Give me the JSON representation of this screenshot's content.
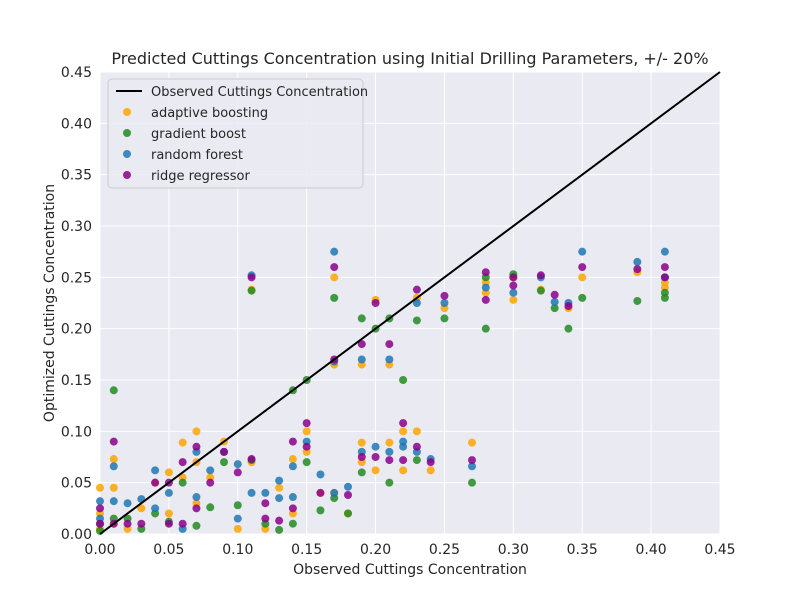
{
  "chart_data": {
    "type": "scatter",
    "title": "Predicted Cuttings Concentration using Initial Drilling Parameters, +/- 20%",
    "xlabel": "Observed Cuttings Concentration",
    "ylabel": "Optimized Cuttings Concentration",
    "xlim": [
      0,
      0.45
    ],
    "ylim": [
      0,
      0.45
    ],
    "grid": true,
    "legend_position": "top-left",
    "x_ticks": [
      "0.00",
      "0.05",
      "0.10",
      "0.15",
      "0.20",
      "0.25",
      "0.30",
      "0.35",
      "0.40",
      "0.45"
    ],
    "y_ticks": [
      "0.00",
      "0.05",
      "0.10",
      "0.15",
      "0.20",
      "0.25",
      "0.30",
      "0.35",
      "0.40",
      "0.45"
    ],
    "reference_line": {
      "name": "Observed Cuttings Concentration",
      "color": "#000000",
      "points": [
        [
          0,
          0
        ],
        [
          0.45,
          0.45
        ]
      ]
    },
    "series": [
      {
        "name": "adaptive boosting",
        "color": "#ffa500",
        "points": [
          [
            0.0,
            0.045
          ],
          [
            0.0,
            0.02
          ],
          [
            0.0,
            0.005
          ],
          [
            0.01,
            0.073
          ],
          [
            0.01,
            0.045
          ],
          [
            0.01,
            0.01
          ],
          [
            0.02,
            0.005
          ],
          [
            0.03,
            0.025
          ],
          [
            0.04,
            0.05
          ],
          [
            0.05,
            0.06
          ],
          [
            0.05,
            0.02
          ],
          [
            0.06,
            0.089
          ],
          [
            0.06,
            0.055
          ],
          [
            0.07,
            0.1
          ],
          [
            0.07,
            0.07
          ],
          [
            0.07,
            0.03
          ],
          [
            0.08,
            0.055
          ],
          [
            0.09,
            0.09
          ],
          [
            0.1,
            0.005
          ],
          [
            0.11,
            0.238
          ],
          [
            0.11,
            0.07
          ],
          [
            0.12,
            0.005
          ],
          [
            0.13,
            0.045
          ],
          [
            0.14,
            0.073
          ],
          [
            0.14,
            0.02
          ],
          [
            0.15,
            0.1
          ],
          [
            0.15,
            0.08
          ],
          [
            0.16,
            0.04
          ],
          [
            0.17,
            0.25
          ],
          [
            0.17,
            0.165
          ],
          [
            0.17,
            0.04
          ],
          [
            0.18,
            0.02
          ],
          [
            0.19,
            0.165
          ],
          [
            0.19,
            0.089
          ],
          [
            0.19,
            0.07
          ],
          [
            0.2,
            0.228
          ],
          [
            0.2,
            0.062
          ],
          [
            0.21,
            0.165
          ],
          [
            0.21,
            0.089
          ],
          [
            0.22,
            0.1
          ],
          [
            0.22,
            0.062
          ],
          [
            0.23,
            0.23
          ],
          [
            0.23,
            0.1
          ],
          [
            0.24,
            0.062
          ],
          [
            0.25,
            0.22
          ],
          [
            0.27,
            0.089
          ],
          [
            0.28,
            0.245
          ],
          [
            0.28,
            0.235
          ],
          [
            0.3,
            0.228
          ],
          [
            0.3,
            0.25
          ],
          [
            0.32,
            0.238
          ],
          [
            0.34,
            0.22
          ],
          [
            0.35,
            0.25
          ],
          [
            0.39,
            0.255
          ],
          [
            0.41,
            0.245
          ],
          [
            0.41,
            0.24
          ]
        ]
      },
      {
        "name": "gradient boost",
        "color": "#228b22",
        "points": [
          [
            0.0,
            0.01
          ],
          [
            0.0,
            0.003
          ],
          [
            0.01,
            0.14
          ],
          [
            0.01,
            0.015
          ],
          [
            0.02,
            0.015
          ],
          [
            0.03,
            0.005
          ],
          [
            0.04,
            0.02
          ],
          [
            0.05,
            0.012
          ],
          [
            0.06,
            0.05
          ],
          [
            0.07,
            0.008
          ],
          [
            0.08,
            0.026
          ],
          [
            0.09,
            0.07
          ],
          [
            0.1,
            0.028
          ],
          [
            0.11,
            0.237
          ],
          [
            0.11,
            0.072
          ],
          [
            0.12,
            0.01
          ],
          [
            0.13,
            0.004
          ],
          [
            0.14,
            0.14
          ],
          [
            0.14,
            0.01
          ],
          [
            0.15,
            0.15
          ],
          [
            0.15,
            0.07
          ],
          [
            0.16,
            0.023
          ],
          [
            0.17,
            0.23
          ],
          [
            0.17,
            0.035
          ],
          [
            0.18,
            0.02
          ],
          [
            0.19,
            0.21
          ],
          [
            0.19,
            0.06
          ],
          [
            0.2,
            0.2
          ],
          [
            0.21,
            0.21
          ],
          [
            0.21,
            0.05
          ],
          [
            0.22,
            0.15
          ],
          [
            0.23,
            0.208
          ],
          [
            0.23,
            0.072
          ],
          [
            0.25,
            0.21
          ],
          [
            0.27,
            0.05
          ],
          [
            0.28,
            0.2
          ],
          [
            0.28,
            0.25
          ],
          [
            0.3,
            0.253
          ],
          [
            0.32,
            0.237
          ],
          [
            0.33,
            0.22
          ],
          [
            0.34,
            0.2
          ],
          [
            0.35,
            0.23
          ],
          [
            0.39,
            0.227
          ],
          [
            0.41,
            0.23
          ],
          [
            0.41,
            0.235
          ]
        ]
      },
      {
        "name": "random forest",
        "color": "#1f77b4",
        "points": [
          [
            0.0,
            0.032
          ],
          [
            0.0,
            0.015
          ],
          [
            0.01,
            0.066
          ],
          [
            0.01,
            0.032
          ],
          [
            0.02,
            0.03
          ],
          [
            0.03,
            0.034
          ],
          [
            0.04,
            0.062
          ],
          [
            0.04,
            0.025
          ],
          [
            0.05,
            0.04
          ],
          [
            0.06,
            0.005
          ],
          [
            0.07,
            0.08
          ],
          [
            0.07,
            0.036
          ],
          [
            0.08,
            0.062
          ],
          [
            0.09,
            0.08
          ],
          [
            0.1,
            0.068
          ],
          [
            0.1,
            0.015
          ],
          [
            0.11,
            0.252
          ],
          [
            0.11,
            0.04
          ],
          [
            0.12,
            0.04
          ],
          [
            0.13,
            0.052
          ],
          [
            0.13,
            0.035
          ],
          [
            0.14,
            0.066
          ],
          [
            0.14,
            0.036
          ],
          [
            0.15,
            0.09
          ],
          [
            0.16,
            0.058
          ],
          [
            0.17,
            0.275
          ],
          [
            0.17,
            0.168
          ],
          [
            0.17,
            0.04
          ],
          [
            0.18,
            0.046
          ],
          [
            0.19,
            0.17
          ],
          [
            0.19,
            0.08
          ],
          [
            0.2,
            0.085
          ],
          [
            0.21,
            0.17
          ],
          [
            0.21,
            0.08
          ],
          [
            0.22,
            0.09
          ],
          [
            0.22,
            0.085
          ],
          [
            0.23,
            0.225
          ],
          [
            0.23,
            0.08
          ],
          [
            0.24,
            0.073
          ],
          [
            0.25,
            0.225
          ],
          [
            0.27,
            0.066
          ],
          [
            0.28,
            0.24
          ],
          [
            0.3,
            0.235
          ],
          [
            0.32,
            0.25
          ],
          [
            0.33,
            0.226
          ],
          [
            0.34,
            0.225
          ],
          [
            0.35,
            0.275
          ],
          [
            0.39,
            0.265
          ],
          [
            0.41,
            0.275
          ],
          [
            0.41,
            0.25
          ]
        ]
      },
      {
        "name": "ridge regressor",
        "color": "#8b008b",
        "points": [
          [
            0.0,
            0.025
          ],
          [
            0.0,
            0.01
          ],
          [
            0.01,
            0.09
          ],
          [
            0.01,
            0.01
          ],
          [
            0.02,
            0.01
          ],
          [
            0.03,
            0.01
          ],
          [
            0.04,
            0.05
          ],
          [
            0.05,
            0.05
          ],
          [
            0.05,
            0.01
          ],
          [
            0.06,
            0.07
          ],
          [
            0.06,
            0.01
          ],
          [
            0.07,
            0.085
          ],
          [
            0.07,
            0.025
          ],
          [
            0.08,
            0.05
          ],
          [
            0.09,
            0.08
          ],
          [
            0.1,
            0.06
          ],
          [
            0.11,
            0.25
          ],
          [
            0.11,
            0.073
          ],
          [
            0.12,
            0.03
          ],
          [
            0.12,
            0.015
          ],
          [
            0.13,
            0.013
          ],
          [
            0.14,
            0.09
          ],
          [
            0.14,
            0.025
          ],
          [
            0.15,
            0.108
          ],
          [
            0.15,
            0.085
          ],
          [
            0.16,
            0.04
          ],
          [
            0.17,
            0.26
          ],
          [
            0.17,
            0.17
          ],
          [
            0.18,
            0.038
          ],
          [
            0.19,
            0.185
          ],
          [
            0.19,
            0.075
          ],
          [
            0.2,
            0.225
          ],
          [
            0.2,
            0.075
          ],
          [
            0.21,
            0.185
          ],
          [
            0.21,
            0.072
          ],
          [
            0.22,
            0.108
          ],
          [
            0.22,
            0.072
          ],
          [
            0.23,
            0.238
          ],
          [
            0.23,
            0.085
          ],
          [
            0.24,
            0.07
          ],
          [
            0.25,
            0.232
          ],
          [
            0.27,
            0.072
          ],
          [
            0.28,
            0.255
          ],
          [
            0.28,
            0.228
          ],
          [
            0.3,
            0.242
          ],
          [
            0.3,
            0.25
          ],
          [
            0.32,
            0.252
          ],
          [
            0.33,
            0.233
          ],
          [
            0.34,
            0.222
          ],
          [
            0.35,
            0.26
          ],
          [
            0.39,
            0.258
          ],
          [
            0.41,
            0.26
          ],
          [
            0.41,
            0.25
          ]
        ]
      }
    ]
  }
}
